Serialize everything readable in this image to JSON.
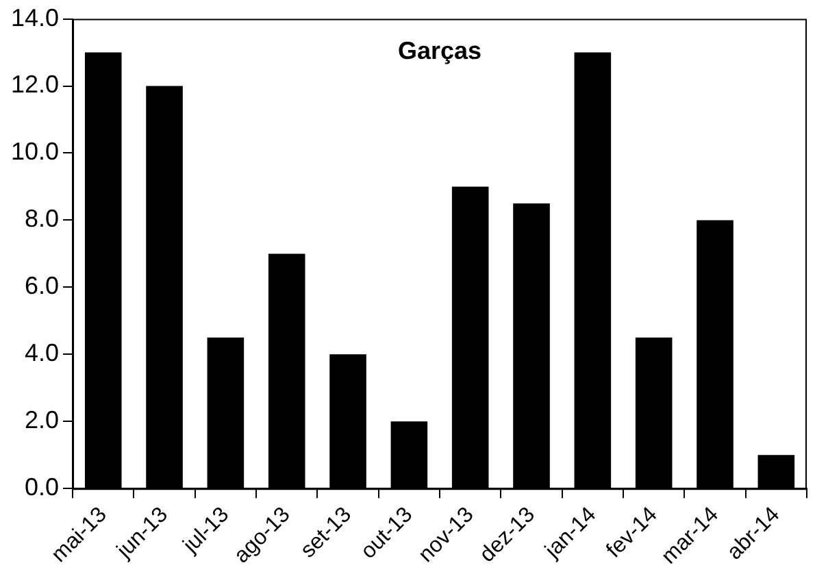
{
  "chart_data": {
    "type": "bar",
    "title": "Garças",
    "categories": [
      "mai-13",
      "jun-13",
      "jul-13",
      "ago-13",
      "set-13",
      "out-13",
      "nov-13",
      "dez-13",
      "jan-14",
      "fev-14",
      "mar-14",
      "abr-14"
    ],
    "values": [
      13,
      12,
      4.5,
      7,
      4,
      2,
      9,
      8.5,
      13,
      4.5,
      8,
      1
    ],
    "color": "#000000",
    "ylim": [
      0,
      14
    ],
    "yticks": [
      {
        "value": 0,
        "label": "0.0"
      },
      {
        "value": 2,
        "label": "2.0"
      },
      {
        "value": 4,
        "label": "4.0"
      },
      {
        "value": 6,
        "label": "6.0"
      },
      {
        "value": 8,
        "label": "8.0"
      },
      {
        "value": 10,
        "label": "10.0"
      },
      {
        "value": 12,
        "label": "12.0"
      },
      {
        "value": 14,
        "label": "14.0"
      }
    ],
    "grid": false,
    "legend": false
  }
}
